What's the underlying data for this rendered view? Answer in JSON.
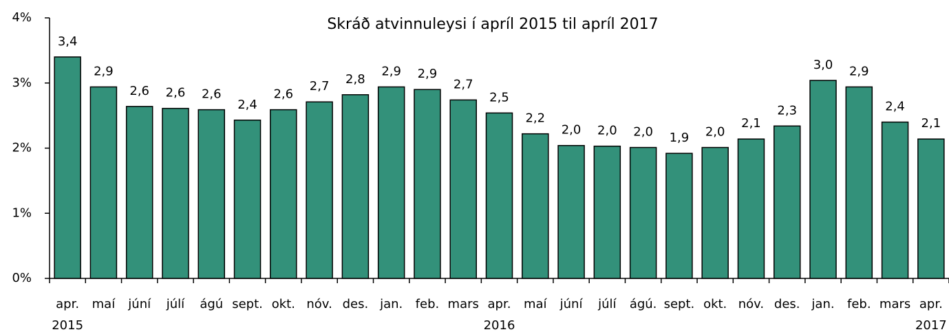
{
  "chart_data": {
    "type": "bar",
    "title": "Skráð atvinnuleysi í apríl 2015 til apríl 2017",
    "categories": [
      "apr.",
      "maí",
      "júní",
      "júlí",
      "ágú",
      "sept.",
      "okt.",
      "nóv.",
      "des.",
      "jan.",
      "feb.",
      "mars",
      "apr.",
      "maí",
      "júní",
      "júlí",
      "ágú.",
      "sept.",
      "okt.",
      "nóv.",
      "des.",
      "jan.",
      "feb.",
      "mars",
      "apr."
    ],
    "year_labels": [
      "2015",
      null,
      null,
      null,
      null,
      null,
      null,
      null,
      null,
      null,
      null,
      null,
      "2016",
      null,
      null,
      null,
      null,
      null,
      null,
      null,
      null,
      null,
      null,
      null,
      "2017"
    ],
    "values": [
      3.4,
      2.94,
      2.64,
      2.61,
      2.59,
      2.43,
      2.59,
      2.71,
      2.82,
      2.94,
      2.9,
      2.74,
      2.54,
      2.22,
      2.04,
      2.03,
      2.01,
      1.92,
      2.01,
      2.14,
      2.34,
      3.04,
      2.94,
      2.4,
      2.14
    ],
    "value_labels": [
      "3,4",
      "2,9",
      "2,6",
      "2,6",
      "2,6",
      "2,4",
      "2,6",
      "2,7",
      "2,8",
      "2,9",
      "2,9",
      "2,7",
      "2,5",
      "2,2",
      "2,0",
      "2,0",
      "2,0",
      "1,9",
      "2,0",
      "2,1",
      "2,3",
      "3,0",
      "2,9",
      "2,4",
      "2,1"
    ],
    "color": "#33917a",
    "ylim": [
      0,
      4
    ],
    "yticks": [
      {
        "value": 0,
        "label": "0%"
      },
      {
        "value": 1,
        "label": "1%"
      },
      {
        "value": 2,
        "label": "2%"
      },
      {
        "value": 3,
        "label": "3%"
      },
      {
        "value": 4,
        "label": "4%"
      }
    ],
    "grid": false
  }
}
